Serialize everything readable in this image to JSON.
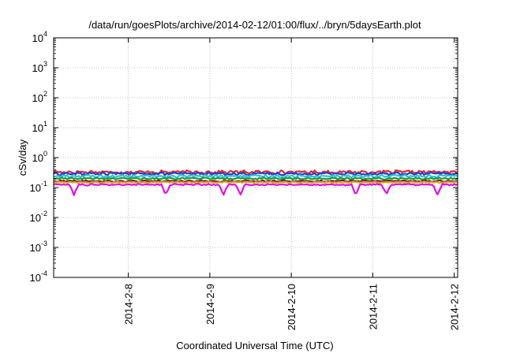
{
  "chart_data": {
    "type": "line",
    "title": "/data/run/goesPlots/archive/2014-02-12/01:00/flux/../bryn/5daysEarth.plot",
    "xlabel": "Coordinated Universal Time (UTC)",
    "ylabel": "cSv/day",
    "yscale": "log",
    "ylim": [
      0.0001,
      10000
    ],
    "xlim": [
      "2014-02-07 02:00",
      "2014-02-12 01:00"
    ],
    "grid": true,
    "y_ticks": [
      {
        "base": "10",
        "exp": "-4"
      },
      {
        "base": "10",
        "exp": "-3"
      },
      {
        "base": "10",
        "exp": "-2"
      },
      {
        "base": "10",
        "exp": "-1"
      },
      {
        "base": "10",
        "exp": "0"
      },
      {
        "base": "10",
        "exp": "1"
      },
      {
        "base": "10",
        "exp": "2"
      },
      {
        "base": "10",
        "exp": "3"
      },
      {
        "base": "10",
        "exp": "4"
      }
    ],
    "x_ticks": [
      {
        "label": "2014-2-8",
        "date": "2014-02-08 00:00"
      },
      {
        "label": "2014-2-9",
        "date": "2014-02-09 00:00"
      },
      {
        "label": "2014-2-10",
        "date": "2014-02-10 00:00"
      },
      {
        "label": "2014-2-11",
        "date": "2014-02-11 00:00"
      },
      {
        "label": "2014-2-12",
        "date": "2014-02-12 00:00"
      }
    ],
    "series": [
      {
        "color": "#e8262a",
        "level": 0.33,
        "jitter": 0.1
      },
      {
        "color": "#2b3ad6",
        "level": 0.29,
        "jitter": 0.09
      },
      {
        "color": "#22c8d8",
        "level": 0.24,
        "jitter": 0.08
      },
      {
        "color": "#1a9a3a",
        "level": 0.2,
        "jitter": 0.06
      },
      {
        "color": "#7a1f1f",
        "level": 0.165,
        "jitter": 0.05
      },
      {
        "color": "#e0a020",
        "level": 0.15,
        "jitter": 0.04
      },
      {
        "color": "#e010e8",
        "level": 0.125,
        "jitter": 0.05,
        "dips": [
          "2014-02-07 08:00",
          "2014-02-08 11:00",
          "2014-02-09 04:00",
          "2014-02-09 09:00",
          "2014-02-10 19:00",
          "2014-02-11 04:00",
          "2014-02-11 19:00"
        ]
      }
    ]
  }
}
